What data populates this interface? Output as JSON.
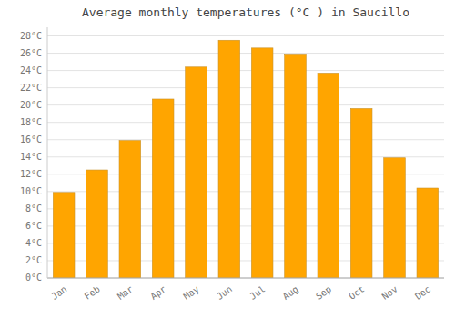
{
  "chart_data": {
    "type": "bar",
    "title": "Average monthly temperatures (°C ) in Saucillo",
    "categories": [
      "Jan",
      "Feb",
      "Mar",
      "Apr",
      "May",
      "Jun",
      "Jul",
      "Aug",
      "Sep",
      "Oct",
      "Nov",
      "Dec"
    ],
    "values": [
      9.9,
      12.5,
      15.9,
      20.7,
      24.4,
      27.5,
      26.6,
      25.9,
      23.7,
      19.6,
      13.9,
      10.4
    ],
    "color": "#FFA500",
    "ylim": [
      0,
      29
    ],
    "yticks": [
      {
        "value": 0,
        "label": "0°C"
      },
      {
        "value": 2,
        "label": "2°C"
      },
      {
        "value": 4,
        "label": "4°C"
      },
      {
        "value": 6,
        "label": "6°C"
      },
      {
        "value": 8,
        "label": "8°C"
      },
      {
        "value": 10,
        "label": "10°C"
      },
      {
        "value": 12,
        "label": "12°C"
      },
      {
        "value": 14,
        "label": "14°C"
      },
      {
        "value": 16,
        "label": "16°C"
      },
      {
        "value": 18,
        "label": "18°C"
      },
      {
        "value": 20,
        "label": "20°C"
      },
      {
        "value": 22,
        "label": "22°C"
      },
      {
        "value": 24,
        "label": "24°C"
      },
      {
        "value": 26,
        "label": "26°C"
      },
      {
        "value": 28,
        "label": "28°C"
      }
    ],
    "grid": true
  }
}
